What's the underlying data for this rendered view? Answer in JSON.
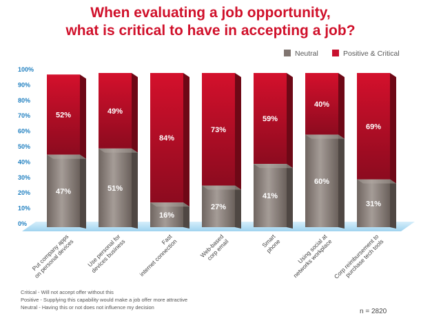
{
  "title_line1": "When evaluating a job opportunity,",
  "title_line2": "what is critical to have in accepting a job?",
  "colors": {
    "title": "#d0102a",
    "neutral": "#807570",
    "positive": "#c8102e",
    "axis": "#1f7fc0",
    "floor": "#a8d8f0"
  },
  "chart_data": {
    "type": "bar",
    "stacked": true,
    "categories": [
      "Put company apps on personal devices",
      "Use personal devices for business",
      "Fast internet connection",
      "Web-based corp email",
      "Smart phone",
      "Using social networks at workplace",
      "Corp reimbursement to purchase tech tools"
    ],
    "series": [
      {
        "name": "Neutral",
        "values": [
          47,
          51,
          16,
          27,
          41,
          60,
          31
        ]
      },
      {
        "name": "Positive & Critical",
        "values": [
          52,
          49,
          84,
          73,
          59,
          40,
          69
        ]
      }
    ],
    "yticks": [
      "0%",
      "10%",
      "20%",
      "30%",
      "40%",
      "50%",
      "60%",
      "70%",
      "80%",
      "90%",
      "100%"
    ],
    "ylim": [
      0,
      100
    ],
    "legend_position": "top-right",
    "grid": false
  },
  "footnotes": [
    "Critical - Will not accept offer without this",
    "Positive - Supplying this capability would make a job offer more attractive",
    "Neutral - Having this or not does not influence my decision"
  ],
  "sample_size": "n = 2820"
}
